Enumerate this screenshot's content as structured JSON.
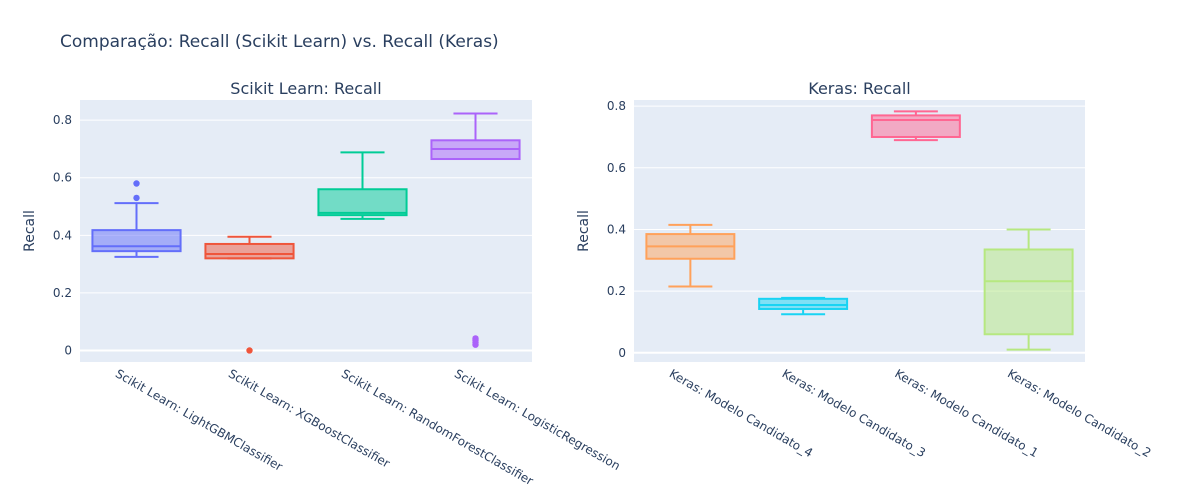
{
  "figure_title": "Comparação: Recall (Scikit Learn) vs. Recall (Keras)",
  "chart_data": [
    {
      "type": "box",
      "title": "Scikit Learn: Recall",
      "xlabel": "",
      "ylabel": "Recall",
      "ylim": [
        -0.04,
        0.87
      ],
      "yticks": [
        0,
        0.2,
        0.4,
        0.6,
        0.8
      ],
      "ytick_labels": [
        "0",
        "0.2",
        "0.4",
        "0.6",
        "0.8"
      ],
      "grid": true,
      "series": [
        {
          "name": "Scikit Learn: LightGBMClassifier",
          "color": "#636efa",
          "fill": "rgba(99,110,250,0.5)",
          "lower_whisker": 0.325,
          "q1": 0.345,
          "median": 0.362,
          "q3": 0.418,
          "upper_whisker": 0.512,
          "outliers": [
            0.53,
            0.58
          ]
        },
        {
          "name": "Scikit Learn: XGBoostClassifier",
          "color": "#ef553b",
          "fill": "rgba(239,85,59,0.5)",
          "lower_whisker": 0.32,
          "q1": 0.32,
          "median": 0.335,
          "q3": 0.37,
          "upper_whisker": 0.395,
          "outliers": [
            0.0
          ]
        },
        {
          "name": "Scikit Learn: RandomForestClassifier",
          "color": "#00cc96",
          "fill": "rgba(0,204,150,0.5)",
          "lower_whisker": 0.457,
          "q1": 0.47,
          "median": 0.478,
          "q3": 0.56,
          "upper_whisker": 0.688,
          "outliers": []
        },
        {
          "name": "Scikit Learn: LogisticRegression",
          "color": "#ab63fa",
          "fill": "rgba(171,99,250,0.5)",
          "lower_whisker": 0.665,
          "q1": 0.665,
          "median": 0.7,
          "q3": 0.73,
          "upper_whisker": 0.823,
          "outliers": [
            0.02,
            0.028,
            0.036,
            0.042
          ]
        }
      ]
    },
    {
      "type": "box",
      "title": "Keras: Recall",
      "xlabel": "",
      "ylabel": "Recall",
      "ylim": [
        -0.03,
        0.82
      ],
      "yticks": [
        0,
        0.2,
        0.4,
        0.6,
        0.8
      ],
      "ytick_labels": [
        "0",
        "0.2",
        "0.4",
        "0.6",
        "0.8"
      ],
      "grid": true,
      "series": [
        {
          "name": "Keras: Modelo Candidato_4",
          "color": "#ffa15a",
          "fill": "rgba(255,161,90,0.5)",
          "lower_whisker": 0.215,
          "q1": 0.305,
          "median": 0.345,
          "q3": 0.385,
          "upper_whisker": 0.415,
          "outliers": []
        },
        {
          "name": "Keras: Modelo Candidato_3",
          "color": "#19d3f3",
          "fill": "rgba(25,211,243,0.5)",
          "lower_whisker": 0.125,
          "q1": 0.142,
          "median": 0.155,
          "q3": 0.175,
          "upper_whisker": 0.178,
          "outliers": []
        },
        {
          "name": "Keras: Modelo Candidato_1",
          "color": "#ff6692",
          "fill": "rgba(255,102,146,0.5)",
          "lower_whisker": 0.69,
          "q1": 0.7,
          "median": 0.755,
          "q3": 0.77,
          "upper_whisker": 0.783,
          "outliers": []
        },
        {
          "name": "Keras: Modelo Candidato_2",
          "color": "#b6e880",
          "fill": "rgba(182,232,128,0.5)",
          "lower_whisker": 0.01,
          "q1": 0.06,
          "median": 0.232,
          "q3": 0.335,
          "upper_whisker": 0.4,
          "outliers": []
        }
      ]
    }
  ]
}
